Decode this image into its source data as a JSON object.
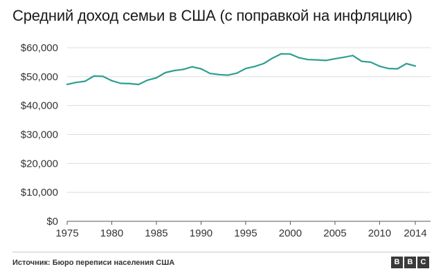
{
  "chart_data": {
    "type": "line",
    "title": "Средний доход семьи в США (с поправкой на инфляцию)",
    "xlabel": "",
    "ylabel": "",
    "x_ticks": [
      "1975",
      "1980",
      "1985",
      "1990",
      "1995",
      "2000",
      "2005",
      "2010",
      "2014"
    ],
    "y_ticks": [
      "$0",
      "$10,000",
      "$20,000",
      "$30,000",
      "$40,000",
      "$50,000",
      "$60,000"
    ],
    "xlim": [
      1975,
      2014
    ],
    "ylim": [
      0,
      60000
    ],
    "grid": "horizontal",
    "series": [
      {
        "color": "#2e9e8f",
        "x": [
          1975,
          1976,
          1977,
          1978,
          1979,
          1980,
          1981,
          1982,
          1983,
          1984,
          1985,
          1986,
          1987,
          1988,
          1989,
          1990,
          1991,
          1992,
          1993,
          1994,
          1995,
          1996,
          1997,
          1998,
          1999,
          2000,
          2001,
          2002,
          2003,
          2004,
          2005,
          2006,
          2007,
          2008,
          2009,
          2010,
          2011,
          2012,
          2013,
          2014
        ],
        "values": [
          47300,
          48000,
          48400,
          50200,
          50100,
          48600,
          47700,
          47600,
          47300,
          48800,
          49600,
          51400,
          52100,
          52500,
          53400,
          52700,
          51100,
          50700,
          50500,
          51200,
          52800,
          53500,
          54500,
          56400,
          57900,
          57800,
          56500,
          55900,
          55800,
          55600,
          56200,
          56700,
          57300,
          55300,
          55000,
          53600,
          52800,
          52700,
          54500,
          53700
        ]
      }
    ]
  },
  "footer": {
    "source": "Источник: Бюро переписи населения США",
    "logo_letters": [
      "B",
      "B",
      "C"
    ]
  }
}
